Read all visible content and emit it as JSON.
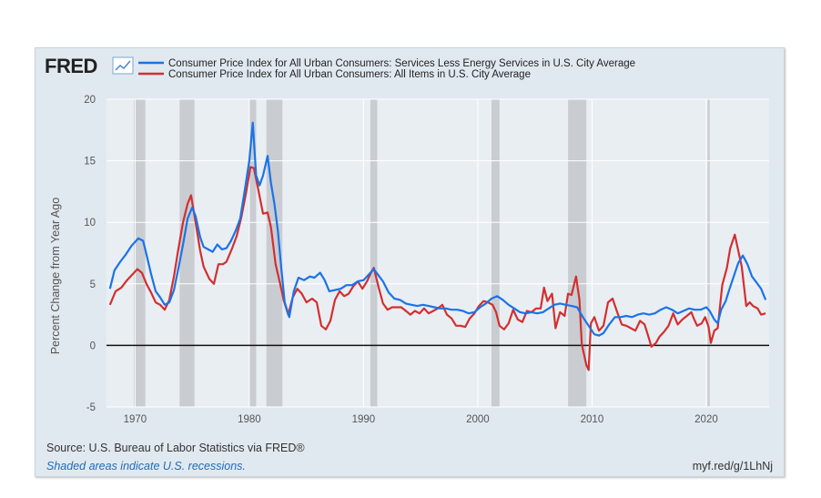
{
  "brand": {
    "logo_text": "FRED"
  },
  "chart_data": {
    "type": "line",
    "title": "",
    "xlabel": "",
    "ylabel": "Percent Change from Year Ago",
    "xlim": [
      1967.5,
      2025.5
    ],
    "ylim": [
      -5,
      20
    ],
    "yticks": [
      -5,
      0,
      5,
      10,
      15,
      20
    ],
    "xticks": [
      1970,
      1980,
      1990,
      2000,
      2010,
      2020
    ],
    "grid": true,
    "legend_position": "top",
    "zero_line": true,
    "recessions": [
      [
        1969.9,
        1970.9
      ],
      [
        1973.9,
        1975.2
      ],
      [
        1980.0,
        1980.6
      ],
      [
        1981.5,
        1982.9
      ],
      [
        1990.6,
        1991.2
      ],
      [
        2001.2,
        2001.9
      ],
      [
        2007.9,
        2009.5
      ],
      [
        2020.1,
        2020.3
      ]
    ],
    "series": [
      {
        "name": "Consumer Price Index for All Urban Consumers: Services Less Energy Services in U.S. City Average",
        "color": "#1a73e8",
        "points": [
          [
            1967.8,
            4.6
          ],
          [
            1968.2,
            6.1
          ],
          [
            1968.7,
            6.8
          ],
          [
            1969.2,
            7.4
          ],
          [
            1969.7,
            8.1
          ],
          [
            1970.0,
            8.4
          ],
          [
            1970.3,
            8.7
          ],
          [
            1970.7,
            8.5
          ],
          [
            1971.0,
            7.4
          ],
          [
            1971.4,
            5.8
          ],
          [
            1971.8,
            4.4
          ],
          [
            1972.2,
            3.9
          ],
          [
            1972.6,
            3.3
          ],
          [
            1973.0,
            3.5
          ],
          [
            1973.4,
            4.5
          ],
          [
            1973.8,
            6.3
          ],
          [
            1974.2,
            8.2
          ],
          [
            1974.6,
            10.3
          ],
          [
            1975.0,
            11.2
          ],
          [
            1975.3,
            10.5
          ],
          [
            1975.7,
            8.8
          ],
          [
            1976.0,
            8.0
          ],
          [
            1976.4,
            7.8
          ],
          [
            1976.8,
            7.6
          ],
          [
            1977.2,
            8.2
          ],
          [
            1977.6,
            7.8
          ],
          [
            1978.0,
            7.9
          ],
          [
            1978.4,
            8.5
          ],
          [
            1978.8,
            9.3
          ],
          [
            1979.2,
            10.3
          ],
          [
            1979.6,
            12.6
          ],
          [
            1980.0,
            15.0
          ],
          [
            1980.3,
            18.1
          ],
          [
            1980.6,
            13.8
          ],
          [
            1980.9,
            13.0
          ],
          [
            1981.2,
            13.8
          ],
          [
            1981.6,
            15.4
          ],
          [
            1981.9,
            13.2
          ],
          [
            1982.2,
            11.5
          ],
          [
            1982.5,
            9.3
          ],
          [
            1982.8,
            6.3
          ],
          [
            1983.1,
            3.5
          ],
          [
            1983.5,
            2.3
          ],
          [
            1983.9,
            4.4
          ],
          [
            1984.3,
            5.5
          ],
          [
            1984.8,
            5.3
          ],
          [
            1985.3,
            5.6
          ],
          [
            1985.7,
            5.5
          ],
          [
            1986.2,
            5.9
          ],
          [
            1986.6,
            5.3
          ],
          [
            1987.0,
            4.4
          ],
          [
            1987.5,
            4.5
          ],
          [
            1988.0,
            4.6
          ],
          [
            1988.5,
            4.9
          ],
          [
            1989.0,
            4.9
          ],
          [
            1989.5,
            5.2
          ],
          [
            1990.0,
            5.3
          ],
          [
            1990.5,
            5.8
          ],
          [
            1990.9,
            6.2
          ],
          [
            1991.3,
            5.7
          ],
          [
            1991.7,
            5.2
          ],
          [
            1992.2,
            4.3
          ],
          [
            1992.7,
            3.8
          ],
          [
            1993.2,
            3.7
          ],
          [
            1993.7,
            3.4
          ],
          [
            1994.2,
            3.3
          ],
          [
            1994.7,
            3.2
          ],
          [
            1995.2,
            3.3
          ],
          [
            1995.7,
            3.2
          ],
          [
            1996.2,
            3.1
          ],
          [
            1996.7,
            3.0
          ],
          [
            1997.2,
            3.0
          ],
          [
            1997.7,
            2.9
          ],
          [
            1998.2,
            2.9
          ],
          [
            1998.7,
            2.8
          ],
          [
            1999.2,
            2.6
          ],
          [
            1999.7,
            2.7
          ],
          [
            2000.2,
            3.1
          ],
          [
            2000.7,
            3.4
          ],
          [
            2001.2,
            3.8
          ],
          [
            2001.7,
            4.0
          ],
          [
            2002.2,
            3.7
          ],
          [
            2002.7,
            3.3
          ],
          [
            2003.2,
            3.0
          ],
          [
            2003.7,
            2.7
          ],
          [
            2004.2,
            2.6
          ],
          [
            2004.7,
            2.7
          ],
          [
            2005.2,
            2.6
          ],
          [
            2005.7,
            2.7
          ],
          [
            2006.2,
            3.0
          ],
          [
            2006.7,
            3.3
          ],
          [
            2007.2,
            3.4
          ],
          [
            2007.7,
            3.3
          ],
          [
            2008.2,
            3.2
          ],
          [
            2008.7,
            3.1
          ],
          [
            2009.2,
            2.3
          ],
          [
            2009.7,
            1.6
          ],
          [
            2010.2,
            0.9
          ],
          [
            2010.6,
            0.8
          ],
          [
            2011.0,
            1.0
          ],
          [
            2011.5,
            1.7
          ],
          [
            2012.0,
            2.3
          ],
          [
            2012.5,
            2.3
          ],
          [
            2013.0,
            2.4
          ],
          [
            2013.5,
            2.3
          ],
          [
            2014.0,
            2.5
          ],
          [
            2014.5,
            2.6
          ],
          [
            2015.0,
            2.5
          ],
          [
            2015.5,
            2.6
          ],
          [
            2016.0,
            2.9
          ],
          [
            2016.5,
            3.1
          ],
          [
            2017.0,
            2.9
          ],
          [
            2017.5,
            2.6
          ],
          [
            2018.0,
            2.8
          ],
          [
            2018.5,
            3.0
          ],
          [
            2019.0,
            2.9
          ],
          [
            2019.5,
            2.9
          ],
          [
            2020.0,
            3.1
          ],
          [
            2020.3,
            2.8
          ],
          [
            2020.7,
            2.1
          ],
          [
            2021.0,
            1.8
          ],
          [
            2021.3,
            2.9
          ],
          [
            2021.7,
            3.6
          ],
          [
            2022.0,
            4.5
          ],
          [
            2022.4,
            5.6
          ],
          [
            2022.8,
            6.7
          ],
          [
            2023.2,
            7.3
          ],
          [
            2023.6,
            6.6
          ],
          [
            2024.0,
            5.6
          ],
          [
            2024.4,
            5.1
          ],
          [
            2024.8,
            4.6
          ],
          [
            2025.2,
            3.7
          ]
        ]
      },
      {
        "name": "Consumer Price Index for All Urban Consumers: All Items in U.S. City Average",
        "color": "#d32f2f",
        "points": [
          [
            1967.8,
            3.3
          ],
          [
            1968.3,
            4.4
          ],
          [
            1968.8,
            4.7
          ],
          [
            1969.3,
            5.3
          ],
          [
            1969.8,
            5.8
          ],
          [
            1970.2,
            6.2
          ],
          [
            1970.6,
            5.9
          ],
          [
            1971.0,
            5.0
          ],
          [
            1971.4,
            4.3
          ],
          [
            1971.8,
            3.5
          ],
          [
            1972.2,
            3.3
          ],
          [
            1972.6,
            2.9
          ],
          [
            1973.0,
            3.7
          ],
          [
            1973.4,
            5.6
          ],
          [
            1973.8,
            7.9
          ],
          [
            1974.2,
            10.0
          ],
          [
            1974.6,
            11.5
          ],
          [
            1974.9,
            12.2
          ],
          [
            1975.3,
            10.0
          ],
          [
            1975.7,
            7.7
          ],
          [
            1976.0,
            6.4
          ],
          [
            1976.5,
            5.4
          ],
          [
            1976.9,
            5.0
          ],
          [
            1977.3,
            6.6
          ],
          [
            1977.7,
            6.6
          ],
          [
            1978.0,
            6.8
          ],
          [
            1978.5,
            7.9
          ],
          [
            1978.9,
            8.9
          ],
          [
            1979.3,
            10.4
          ],
          [
            1979.7,
            12.3
          ],
          [
            1980.1,
            14.5
          ],
          [
            1980.4,
            14.4
          ],
          [
            1980.8,
            12.6
          ],
          [
            1981.2,
            10.7
          ],
          [
            1981.6,
            10.8
          ],
          [
            1981.9,
            9.6
          ],
          [
            1982.3,
            6.6
          ],
          [
            1982.7,
            5.0
          ],
          [
            1983.0,
            3.7
          ],
          [
            1983.4,
            2.5
          ],
          [
            1983.8,
            3.9
          ],
          [
            1984.2,
            4.6
          ],
          [
            1984.6,
            4.2
          ],
          [
            1985.0,
            3.5
          ],
          [
            1985.5,
            3.8
          ],
          [
            1985.9,
            3.5
          ],
          [
            1986.3,
            1.6
          ],
          [
            1986.7,
            1.3
          ],
          [
            1987.1,
            2.0
          ],
          [
            1987.5,
            3.7
          ],
          [
            1987.9,
            4.4
          ],
          [
            1988.3,
            4.0
          ],
          [
            1988.7,
            4.2
          ],
          [
            1989.1,
            4.8
          ],
          [
            1989.5,
            5.2
          ],
          [
            1989.9,
            4.6
          ],
          [
            1990.3,
            5.2
          ],
          [
            1990.7,
            6.0
          ],
          [
            1990.9,
            6.3
          ],
          [
            1991.3,
            4.8
          ],
          [
            1991.7,
            3.4
          ],
          [
            1992.1,
            2.9
          ],
          [
            1992.5,
            3.1
          ],
          [
            1992.9,
            3.1
          ],
          [
            1993.3,
            3.1
          ],
          [
            1993.7,
            2.8
          ],
          [
            1994.1,
            2.5
          ],
          [
            1994.5,
            2.8
          ],
          [
            1994.9,
            2.6
          ],
          [
            1995.3,
            3.0
          ],
          [
            1995.7,
            2.6
          ],
          [
            1996.1,
            2.8
          ],
          [
            1996.5,
            3.0
          ],
          [
            1996.9,
            3.3
          ],
          [
            1997.3,
            2.5
          ],
          [
            1997.7,
            2.2
          ],
          [
            1998.1,
            1.6
          ],
          [
            1998.5,
            1.6
          ],
          [
            1998.9,
            1.5
          ],
          [
            1999.3,
            2.2
          ],
          [
            1999.7,
            2.6
          ],
          [
            2000.1,
            3.2
          ],
          [
            2000.5,
            3.6
          ],
          [
            2000.9,
            3.5
          ],
          [
            2001.3,
            3.3
          ],
          [
            2001.6,
            2.7
          ],
          [
            2001.9,
            1.6
          ],
          [
            2002.3,
            1.3
          ],
          [
            2002.7,
            1.8
          ],
          [
            2003.1,
            2.9
          ],
          [
            2003.5,
            2.1
          ],
          [
            2003.9,
            1.9
          ],
          [
            2004.3,
            2.8
          ],
          [
            2004.7,
            2.7
          ],
          [
            2005.1,
            3.0
          ],
          [
            2005.5,
            3.0
          ],
          [
            2005.8,
            4.7
          ],
          [
            2006.1,
            3.6
          ],
          [
            2006.5,
            4.2
          ],
          [
            2006.8,
            1.4
          ],
          [
            2007.2,
            2.7
          ],
          [
            2007.6,
            2.4
          ],
          [
            2007.9,
            4.2
          ],
          [
            2008.2,
            4.1
          ],
          [
            2008.6,
            5.6
          ],
          [
            2008.9,
            3.7
          ],
          [
            2009.1,
            0.1
          ],
          [
            2009.5,
            -1.6
          ],
          [
            2009.7,
            -2.0
          ],
          [
            2009.9,
            1.8
          ],
          [
            2010.2,
            2.3
          ],
          [
            2010.6,
            1.2
          ],
          [
            2011.0,
            1.6
          ],
          [
            2011.4,
            3.5
          ],
          [
            2011.8,
            3.8
          ],
          [
            2012.2,
            2.7
          ],
          [
            2012.6,
            1.7
          ],
          [
            2013.0,
            1.6
          ],
          [
            2013.4,
            1.4
          ],
          [
            2013.8,
            1.2
          ],
          [
            2014.2,
            2.0
          ],
          [
            2014.6,
            1.7
          ],
          [
            2014.9,
            0.8
          ],
          [
            2015.2,
            -0.1
          ],
          [
            2015.6,
            0.2
          ],
          [
            2015.9,
            0.7
          ],
          [
            2016.3,
            1.1
          ],
          [
            2016.7,
            1.6
          ],
          [
            2017.1,
            2.6
          ],
          [
            2017.5,
            1.7
          ],
          [
            2017.9,
            2.1
          ],
          [
            2018.3,
            2.4
          ],
          [
            2018.7,
            2.7
          ],
          [
            2018.9,
            2.2
          ],
          [
            2019.2,
            1.6
          ],
          [
            2019.6,
            1.8
          ],
          [
            2019.9,
            2.3
          ],
          [
            2020.2,
            1.5
          ],
          [
            2020.4,
            0.2
          ],
          [
            2020.7,
            1.2
          ],
          [
            2021.0,
            1.4
          ],
          [
            2021.4,
            4.9
          ],
          [
            2021.8,
            6.3
          ],
          [
            2022.1,
            7.9
          ],
          [
            2022.5,
            9.0
          ],
          [
            2022.8,
            7.7
          ],
          [
            2023.1,
            6.4
          ],
          [
            2023.5,
            3.2
          ],
          [
            2023.8,
            3.5
          ],
          [
            2024.1,
            3.2
          ],
          [
            2024.5,
            3.0
          ],
          [
            2024.8,
            2.5
          ],
          [
            2025.2,
            2.6
          ]
        ]
      }
    ]
  },
  "footer": {
    "source": "Source: U.S. Bureau of Labor Statistics via FRED®",
    "note": "Shaded areas indicate U.S. recessions.",
    "url": "myf.red/g/1LhNj"
  }
}
